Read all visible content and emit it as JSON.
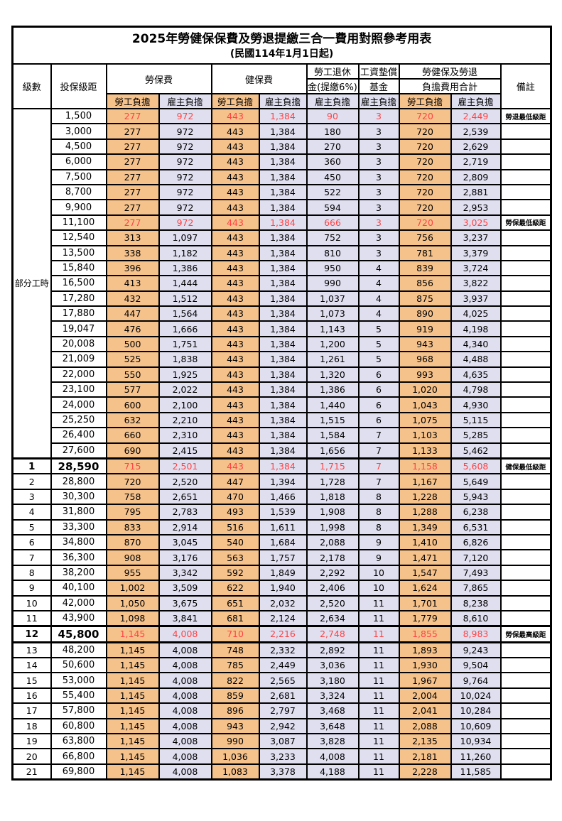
{
  "title": "2025年勞健保保費及勞退提繳三合一費用對照參考用表",
  "subtitle": "(民國114年1月1日起)",
  "header": {
    "level_label": "級數",
    "bracket_label": "投保級距",
    "labor_label": "勞保費",
    "health_label": "健保費",
    "pension_line1": "勞工退休",
    "pension_line2": "金(提繳6%)",
    "fund_line1": "工資墊償",
    "fund_line2": "基金",
    "total_line1": "勞健保及勞退",
    "total_line2": "負擔費用合計",
    "remark_label": "備註",
    "employee_label": "勞工負擔",
    "employer_label": "雇主負擔"
  },
  "colors": {
    "employee_bg": "#F6C28B",
    "employer_bg": "#E0DFF0",
    "highlight_text": "#FF4343",
    "border": "#000000"
  },
  "part_time": {
    "label": "部分工時",
    "rowspan": 23
  },
  "table": {
    "rows": [
      {
        "level": null,
        "bracket": "1,500",
        "li_e": "277",
        "li_r": "972",
        "hi_e": "443",
        "hi_r": "1,384",
        "pen": "90",
        "fund": "3",
        "tot_e": "720",
        "tot_r": "2,449",
        "remark": "勞退最低級距",
        "highlight": true,
        "bold": false,
        "thick_top": false,
        "thick_bottom": false
      },
      {
        "level": null,
        "bracket": "3,000",
        "li_e": "277",
        "li_r": "972",
        "hi_e": "443",
        "hi_r": "1,384",
        "pen": "180",
        "fund": "3",
        "tot_e": "720",
        "tot_r": "2,539",
        "remark": "",
        "highlight": false,
        "bold": false,
        "thick_top": false,
        "thick_bottom": false
      },
      {
        "level": null,
        "bracket": "4,500",
        "li_e": "277",
        "li_r": "972",
        "hi_e": "443",
        "hi_r": "1,384",
        "pen": "270",
        "fund": "3",
        "tot_e": "720",
        "tot_r": "2,629",
        "remark": "",
        "highlight": false,
        "bold": false,
        "thick_top": false,
        "thick_bottom": false
      },
      {
        "level": null,
        "bracket": "6,000",
        "li_e": "277",
        "li_r": "972",
        "hi_e": "443",
        "hi_r": "1,384",
        "pen": "360",
        "fund": "3",
        "tot_e": "720",
        "tot_r": "2,719",
        "remark": "",
        "highlight": false,
        "bold": false,
        "thick_top": false,
        "thick_bottom": false
      },
      {
        "level": null,
        "bracket": "7,500",
        "li_e": "277",
        "li_r": "972",
        "hi_e": "443",
        "hi_r": "1,384",
        "pen": "450",
        "fund": "3",
        "tot_e": "720",
        "tot_r": "2,809",
        "remark": "",
        "highlight": false,
        "bold": false,
        "thick_top": false,
        "thick_bottom": false
      },
      {
        "level": null,
        "bracket": "8,700",
        "li_e": "277",
        "li_r": "972",
        "hi_e": "443",
        "hi_r": "1,384",
        "pen": "522",
        "fund": "3",
        "tot_e": "720",
        "tot_r": "2,881",
        "remark": "",
        "highlight": false,
        "bold": false,
        "thick_top": false,
        "thick_bottom": false
      },
      {
        "level": null,
        "bracket": "9,900",
        "li_e": "277",
        "li_r": "972",
        "hi_e": "443",
        "hi_r": "1,384",
        "pen": "594",
        "fund": "3",
        "tot_e": "720",
        "tot_r": "2,953",
        "remark": "",
        "highlight": false,
        "bold": false,
        "thick_top": false,
        "thick_bottom": false
      },
      {
        "level": null,
        "bracket": "11,100",
        "li_e": "277",
        "li_r": "972",
        "hi_e": "443",
        "hi_r": "1,384",
        "pen": "666",
        "fund": "3",
        "tot_e": "720",
        "tot_r": "3,025",
        "remark": "勞保最低級距",
        "highlight": true,
        "bold": false,
        "thick_top": false,
        "thick_bottom": false
      },
      {
        "level": null,
        "bracket": "12,540",
        "li_e": "313",
        "li_r": "1,097",
        "hi_e": "443",
        "hi_r": "1,384",
        "pen": "752",
        "fund": "3",
        "tot_e": "756",
        "tot_r": "3,237",
        "remark": "",
        "highlight": false,
        "bold": false,
        "thick_top": false,
        "thick_bottom": false
      },
      {
        "level": null,
        "bracket": "13,500",
        "li_e": "338",
        "li_r": "1,182",
        "hi_e": "443",
        "hi_r": "1,384",
        "pen": "810",
        "fund": "3",
        "tot_e": "781",
        "tot_r": "3,379",
        "remark": "",
        "highlight": false,
        "bold": false,
        "thick_top": false,
        "thick_bottom": false
      },
      {
        "level": null,
        "bracket": "15,840",
        "li_e": "396",
        "li_r": "1,386",
        "hi_e": "443",
        "hi_r": "1,384",
        "pen": "950",
        "fund": "4",
        "tot_e": "839",
        "tot_r": "3,724",
        "remark": "",
        "highlight": false,
        "bold": false,
        "thick_top": false,
        "thick_bottom": false
      },
      {
        "level": null,
        "bracket": "16,500",
        "li_e": "413",
        "li_r": "1,444",
        "hi_e": "443",
        "hi_r": "1,384",
        "pen": "990",
        "fund": "4",
        "tot_e": "856",
        "tot_r": "3,822",
        "remark": "",
        "highlight": false,
        "bold": false,
        "thick_top": false,
        "thick_bottom": false
      },
      {
        "level": null,
        "bracket": "17,280",
        "li_e": "432",
        "li_r": "1,512",
        "hi_e": "443",
        "hi_r": "1,384",
        "pen": "1,037",
        "fund": "4",
        "tot_e": "875",
        "tot_r": "3,937",
        "remark": "",
        "highlight": false,
        "bold": false,
        "thick_top": false,
        "thick_bottom": false
      },
      {
        "level": null,
        "bracket": "17,880",
        "li_e": "447",
        "li_r": "1,564",
        "hi_e": "443",
        "hi_r": "1,384",
        "pen": "1,073",
        "fund": "4",
        "tot_e": "890",
        "tot_r": "4,025",
        "remark": "",
        "highlight": false,
        "bold": false,
        "thick_top": false,
        "thick_bottom": false
      },
      {
        "level": null,
        "bracket": "19,047",
        "li_e": "476",
        "li_r": "1,666",
        "hi_e": "443",
        "hi_r": "1,384",
        "pen": "1,143",
        "fund": "5",
        "tot_e": "919",
        "tot_r": "4,198",
        "remark": "",
        "highlight": false,
        "bold": false,
        "thick_top": false,
        "thick_bottom": false
      },
      {
        "level": null,
        "bracket": "20,008",
        "li_e": "500",
        "li_r": "1,751",
        "hi_e": "443",
        "hi_r": "1,384",
        "pen": "1,200",
        "fund": "5",
        "tot_e": "943",
        "tot_r": "4,340",
        "remark": "",
        "highlight": false,
        "bold": false,
        "thick_top": false,
        "thick_bottom": false
      },
      {
        "level": null,
        "bracket": "21,009",
        "li_e": "525",
        "li_r": "1,838",
        "hi_e": "443",
        "hi_r": "1,384",
        "pen": "1,261",
        "fund": "5",
        "tot_e": "968",
        "tot_r": "4,488",
        "remark": "",
        "highlight": false,
        "bold": false,
        "thick_top": false,
        "thick_bottom": false
      },
      {
        "level": null,
        "bracket": "22,000",
        "li_e": "550",
        "li_r": "1,925",
        "hi_e": "443",
        "hi_r": "1,384",
        "pen": "1,320",
        "fund": "6",
        "tot_e": "993",
        "tot_r": "4,635",
        "remark": "",
        "highlight": false,
        "bold": false,
        "thick_top": false,
        "thick_bottom": false
      },
      {
        "level": null,
        "bracket": "23,100",
        "li_e": "577",
        "li_r": "2,022",
        "hi_e": "443",
        "hi_r": "1,384",
        "pen": "1,386",
        "fund": "6",
        "tot_e": "1,020",
        "tot_r": "4,798",
        "remark": "",
        "highlight": false,
        "bold": false,
        "thick_top": false,
        "thick_bottom": false
      },
      {
        "level": null,
        "bracket": "24,000",
        "li_e": "600",
        "li_r": "2,100",
        "hi_e": "443",
        "hi_r": "1,384",
        "pen": "1,440",
        "fund": "6",
        "tot_e": "1,043",
        "tot_r": "4,930",
        "remark": "",
        "highlight": false,
        "bold": false,
        "thick_top": false,
        "thick_bottom": false
      },
      {
        "level": null,
        "bracket": "25,250",
        "li_e": "632",
        "li_r": "2,210",
        "hi_e": "443",
        "hi_r": "1,384",
        "pen": "1,515",
        "fund": "6",
        "tot_e": "1,075",
        "tot_r": "5,115",
        "remark": "",
        "highlight": false,
        "bold": false,
        "thick_top": false,
        "thick_bottom": false
      },
      {
        "level": null,
        "bracket": "26,400",
        "li_e": "660",
        "li_r": "2,310",
        "hi_e": "443",
        "hi_r": "1,384",
        "pen": "1,584",
        "fund": "7",
        "tot_e": "1,103",
        "tot_r": "5,285",
        "remark": "",
        "highlight": false,
        "bold": false,
        "thick_top": false,
        "thick_bottom": false
      },
      {
        "level": null,
        "bracket": "27,600",
        "li_e": "690",
        "li_r": "2,415",
        "hi_e": "443",
        "hi_r": "1,384",
        "pen": "1,656",
        "fund": "7",
        "tot_e": "1,133",
        "tot_r": "5,462",
        "remark": "",
        "highlight": false,
        "bold": false,
        "thick_top": false,
        "thick_bottom": false
      },
      {
        "level": "1",
        "bracket": "28,590",
        "li_e": "715",
        "li_r": "2,501",
        "hi_e": "443",
        "hi_r": "1,384",
        "pen": "1,715",
        "fund": "7",
        "tot_e": "1,158",
        "tot_r": "5,608",
        "remark": "健保最低級距",
        "highlight": true,
        "bold": true,
        "thick_top": true,
        "thick_bottom": false
      },
      {
        "level": "2",
        "bracket": "28,800",
        "li_e": "720",
        "li_r": "2,520",
        "hi_e": "447",
        "hi_r": "1,394",
        "pen": "1,728",
        "fund": "7",
        "tot_e": "1,167",
        "tot_r": "5,649",
        "remark": "",
        "highlight": false,
        "bold": false,
        "thick_top": false,
        "thick_bottom": false
      },
      {
        "level": "3",
        "bracket": "30,300",
        "li_e": "758",
        "li_r": "2,651",
        "hi_e": "470",
        "hi_r": "1,466",
        "pen": "1,818",
        "fund": "8",
        "tot_e": "1,228",
        "tot_r": "5,943",
        "remark": "",
        "highlight": false,
        "bold": false,
        "thick_top": false,
        "thick_bottom": false
      },
      {
        "level": "4",
        "bracket": "31,800",
        "li_e": "795",
        "li_r": "2,783",
        "hi_e": "493",
        "hi_r": "1,539",
        "pen": "1,908",
        "fund": "8",
        "tot_e": "1,288",
        "tot_r": "6,238",
        "remark": "",
        "highlight": false,
        "bold": false,
        "thick_top": false,
        "thick_bottom": false
      },
      {
        "level": "5",
        "bracket": "33,300",
        "li_e": "833",
        "li_r": "2,914",
        "hi_e": "516",
        "hi_r": "1,611",
        "pen": "1,998",
        "fund": "8",
        "tot_e": "1,349",
        "tot_r": "6,531",
        "remark": "",
        "highlight": false,
        "bold": false,
        "thick_top": false,
        "thick_bottom": false
      },
      {
        "level": "6",
        "bracket": "34,800",
        "li_e": "870",
        "li_r": "3,045",
        "hi_e": "540",
        "hi_r": "1,684",
        "pen": "2,088",
        "fund": "9",
        "tot_e": "1,410",
        "tot_r": "6,826",
        "remark": "",
        "highlight": false,
        "bold": false,
        "thick_top": false,
        "thick_bottom": false
      },
      {
        "level": "7",
        "bracket": "36,300",
        "li_e": "908",
        "li_r": "3,176",
        "hi_e": "563",
        "hi_r": "1,757",
        "pen": "2,178",
        "fund": "9",
        "tot_e": "1,471",
        "tot_r": "7,120",
        "remark": "",
        "highlight": false,
        "bold": false,
        "thick_top": false,
        "thick_bottom": false
      },
      {
        "level": "8",
        "bracket": "38,200",
        "li_e": "955",
        "li_r": "3,342",
        "hi_e": "592",
        "hi_r": "1,849",
        "pen": "2,292",
        "fund": "10",
        "tot_e": "1,547",
        "tot_r": "7,493",
        "remark": "",
        "highlight": false,
        "bold": false,
        "thick_top": false,
        "thick_bottom": false
      },
      {
        "level": "9",
        "bracket": "40,100",
        "li_e": "1,002",
        "li_r": "3,509",
        "hi_e": "622",
        "hi_r": "1,940",
        "pen": "2,406",
        "fund": "10",
        "tot_e": "1,624",
        "tot_r": "7,865",
        "remark": "",
        "highlight": false,
        "bold": false,
        "thick_top": false,
        "thick_bottom": false
      },
      {
        "level": "10",
        "bracket": "42,000",
        "li_e": "1,050",
        "li_r": "3,675",
        "hi_e": "651",
        "hi_r": "2,032",
        "pen": "2,520",
        "fund": "11",
        "tot_e": "1,701",
        "tot_r": "8,238",
        "remark": "",
        "highlight": false,
        "bold": false,
        "thick_top": false,
        "thick_bottom": false
      },
      {
        "level": "11",
        "bracket": "43,900",
        "li_e": "1,098",
        "li_r": "3,841",
        "hi_e": "681",
        "hi_r": "2,124",
        "pen": "2,634",
        "fund": "11",
        "tot_e": "1,779",
        "tot_r": "8,610",
        "remark": "",
        "highlight": false,
        "bold": false,
        "thick_top": false,
        "thick_bottom": false
      },
      {
        "level": "12",
        "bracket": "45,800",
        "li_e": "1,145",
        "li_r": "4,008",
        "hi_e": "710",
        "hi_r": "2,216",
        "pen": "2,748",
        "fund": "11",
        "tot_e": "1,855",
        "tot_r": "8,983",
        "remark": "勞保最高級距",
        "highlight": true,
        "bold": true,
        "thick_top": true,
        "thick_bottom": true
      },
      {
        "level": "13",
        "bracket": "48,200",
        "li_e": "1,145",
        "li_r": "4,008",
        "hi_e": "748",
        "hi_r": "2,332",
        "pen": "2,892",
        "fund": "11",
        "tot_e": "1,893",
        "tot_r": "9,243",
        "remark": "",
        "highlight": false,
        "bold": false,
        "thick_top": false,
        "thick_bottom": false
      },
      {
        "level": "14",
        "bracket": "50,600",
        "li_e": "1,145",
        "li_r": "4,008",
        "hi_e": "785",
        "hi_r": "2,449",
        "pen": "3,036",
        "fund": "11",
        "tot_e": "1,930",
        "tot_r": "9,504",
        "remark": "",
        "highlight": false,
        "bold": false,
        "thick_top": false,
        "thick_bottom": false
      },
      {
        "level": "15",
        "bracket": "53,000",
        "li_e": "1,145",
        "li_r": "4,008",
        "hi_e": "822",
        "hi_r": "2,565",
        "pen": "3,180",
        "fund": "11",
        "tot_e": "1,967",
        "tot_r": "9,764",
        "remark": "",
        "highlight": false,
        "bold": false,
        "thick_top": false,
        "thick_bottom": false
      },
      {
        "level": "16",
        "bracket": "55,400",
        "li_e": "1,145",
        "li_r": "4,008",
        "hi_e": "859",
        "hi_r": "2,681",
        "pen": "3,324",
        "fund": "11",
        "tot_e": "2,004",
        "tot_r": "10,024",
        "remark": "",
        "highlight": false,
        "bold": false,
        "thick_top": false,
        "thick_bottom": false
      },
      {
        "level": "17",
        "bracket": "57,800",
        "li_e": "1,145",
        "li_r": "4,008",
        "hi_e": "896",
        "hi_r": "2,797",
        "pen": "3,468",
        "fund": "11",
        "tot_e": "2,041",
        "tot_r": "10,284",
        "remark": "",
        "highlight": false,
        "bold": false,
        "thick_top": false,
        "thick_bottom": false
      },
      {
        "level": "18",
        "bracket": "60,800",
        "li_e": "1,145",
        "li_r": "4,008",
        "hi_e": "943",
        "hi_r": "2,942",
        "pen": "3,648",
        "fund": "11",
        "tot_e": "2,088",
        "tot_r": "10,609",
        "remark": "",
        "highlight": false,
        "bold": false,
        "thick_top": false,
        "thick_bottom": false
      },
      {
        "level": "19",
        "bracket": "63,800",
        "li_e": "1,145",
        "li_r": "4,008",
        "hi_e": "990",
        "hi_r": "3,087",
        "pen": "3,828",
        "fund": "11",
        "tot_e": "2,135",
        "tot_r": "10,934",
        "remark": "",
        "highlight": false,
        "bold": false,
        "thick_top": false,
        "thick_bottom": false
      },
      {
        "level": "20",
        "bracket": "66,800",
        "li_e": "1,145",
        "li_r": "4,008",
        "hi_e": "1,036",
        "hi_r": "3,233",
        "pen": "4,008",
        "fund": "11",
        "tot_e": "2,181",
        "tot_r": "11,260",
        "remark": "",
        "highlight": false,
        "bold": false,
        "thick_top": false,
        "thick_bottom": false
      },
      {
        "level": "21",
        "bracket": "69,800",
        "li_e": "1,145",
        "li_r": "4,008",
        "hi_e": "1,083",
        "hi_r": "3,378",
        "pen": "4,188",
        "fund": "11",
        "tot_e": "2,228",
        "tot_r": "11,585",
        "remark": "",
        "highlight": false,
        "bold": false,
        "thick_top": false,
        "thick_bottom": false
      }
    ]
  }
}
